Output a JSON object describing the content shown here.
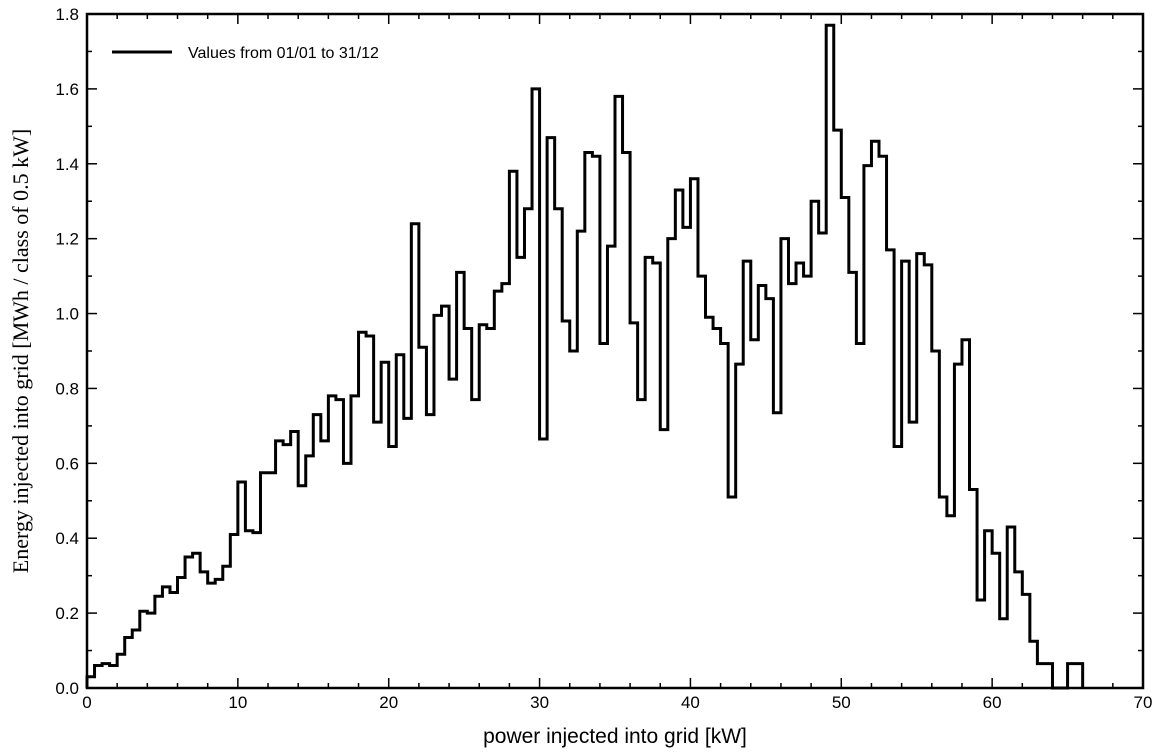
{
  "chart_data": {
    "type": "line",
    "step": true,
    "title": "",
    "xlabel": "power injected into grid [kW]",
    "ylabel": "Energy injected into grid [MWh / class of 0.5 kW]",
    "xlim": [
      0,
      70
    ],
    "ylim": [
      0,
      1.8
    ],
    "x_ticks": [
      0,
      10,
      20,
      30,
      40,
      50,
      60,
      70
    ],
    "y_ticks": [
      0.0,
      0.2,
      0.4,
      0.6,
      0.8,
      1.0,
      1.2,
      1.4,
      1.6,
      1.8
    ],
    "y_tick_labels": [
      "0.0",
      "0.2",
      "0.4",
      "0.6",
      "0.8",
      "1.0",
      "1.2",
      "1.4",
      "1.6",
      "1.8"
    ],
    "grid": false,
    "legend_position": "top-left",
    "bin_width": 0.5,
    "series": [
      {
        "name": "Values from 01/01 to 31/12",
        "color": "#000000",
        "x_start": 0,
        "values": [
          0.03,
          0.06,
          0.065,
          0.06,
          0.09,
          0.135,
          0.155,
          0.205,
          0.2,
          0.245,
          0.27,
          0.255,
          0.295,
          0.35,
          0.36,
          0.31,
          0.28,
          0.29,
          0.325,
          0.41,
          0.55,
          0.42,
          0.415,
          0.575,
          0.575,
          0.66,
          0.65,
          0.685,
          0.54,
          0.62,
          0.73,
          0.66,
          0.78,
          0.77,
          0.6,
          0.78,
          0.95,
          0.94,
          0.71,
          0.87,
          0.645,
          0.89,
          0.72,
          1.24,
          0.91,
          0.73,
          0.995,
          1.02,
          0.825,
          1.11,
          0.96,
          0.77,
          0.97,
          0.96,
          1.06,
          1.08,
          1.38,
          1.15,
          1.28,
          1.6,
          0.665,
          1.47,
          1.28,
          0.98,
          0.9,
          1.22,
          1.43,
          1.42,
          0.92,
          1.18,
          1.58,
          1.43,
          0.975,
          0.77,
          1.15,
          1.135,
          0.69,
          1.2,
          1.33,
          1.23,
          1.36,
          1.1,
          0.99,
          0.96,
          0.92,
          0.51,
          0.865,
          1.14,
          0.93,
          1.075,
          1.04,
          0.735,
          1.2,
          1.08,
          1.135,
          1.1,
          1.3,
          1.215,
          1.77,
          1.49,
          1.31,
          1.11,
          0.92,
          1.395,
          1.46,
          1.42,
          1.17,
          0.645,
          1.14,
          0.71,
          1.16,
          1.13,
          0.9,
          0.51,
          0.46,
          0.865,
          0.93,
          0.53,
          0.235,
          0.42,
          0.36,
          0.185,
          0.43,
          0.31,
          0.25,
          0.125,
          0.065,
          0.065,
          0.0,
          0.0,
          0.065,
          0.065
        ]
      }
    ]
  }
}
